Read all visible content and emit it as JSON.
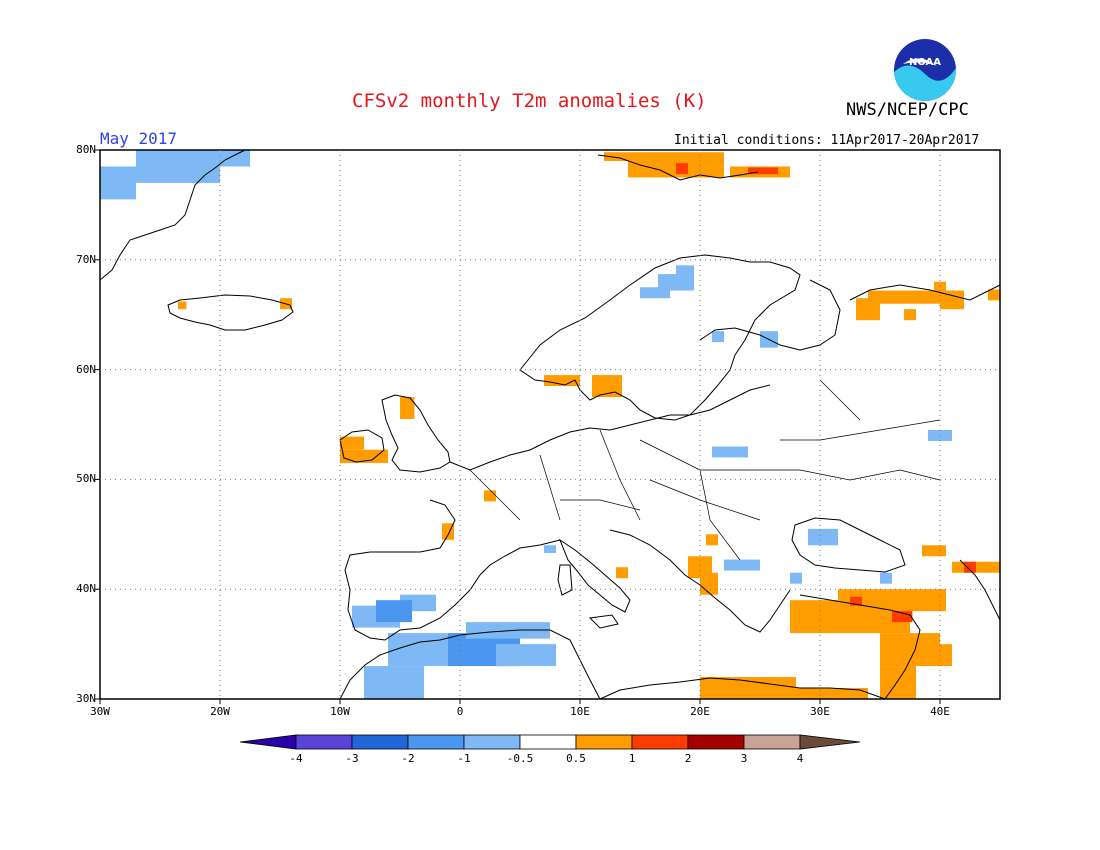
{
  "header": {
    "title": "CFSv2 monthly T2m anomalies (K)",
    "agency": "NWS/NCEP/CPC",
    "logo_text": "NOAA",
    "month": "May 2017",
    "initial_conditions": "Initial conditions: 11Apr2017-20Apr2017"
  },
  "axes": {
    "lat_ticks": [
      {
        "label": "80N",
        "value": 80
      },
      {
        "label": "70N",
        "value": 70
      },
      {
        "label": "60N",
        "value": 60
      },
      {
        "label": "50N",
        "value": 50
      },
      {
        "label": "40N",
        "value": 40
      },
      {
        "label": "30N",
        "value": 30
      }
    ],
    "lon_ticks": [
      {
        "label": "30W",
        "value": -30
      },
      {
        "label": "20W",
        "value": -20
      },
      {
        "label": "10W",
        "value": -10
      },
      {
        "label": "0",
        "value": 0
      },
      {
        "label": "10E",
        "value": 10
      },
      {
        "label": "20E",
        "value": 20
      },
      {
        "label": "30E",
        "value": 30
      },
      {
        "label": "40E",
        "value": 40
      }
    ],
    "lon_range": [
      -30,
      45
    ],
    "lat_range": [
      30,
      80
    ]
  },
  "colorbar": {
    "labels": [
      "-4",
      "-3",
      "-2",
      "-1",
      "-0.5",
      "0.5",
      "1",
      "2",
      "3",
      "4"
    ],
    "colors": [
      "#2a00a8",
      "#5a43d8",
      "#2166d8",
      "#4b96ee",
      "#7fb9f5",
      "#ffffff",
      "#ff9c00",
      "#ff3b00",
      "#a50000",
      "#c9a396",
      "#6b4a3a"
    ]
  },
  "colors": {
    "cold_1": "#4b96ee",
    "cold_05": "#7fb9f5",
    "warm_05": "#ff9c00",
    "warm_1": "#ff3b00"
  },
  "anomalies": [
    {
      "lon": -30,
      "lat": 75.5,
      "w": 3,
      "h": 3,
      "v": -0.7
    },
    {
      "lon": -27,
      "lat": 77,
      "w": 7,
      "h": 3,
      "v": -0.7
    },
    {
      "lon": -22,
      "lat": 78.5,
      "w": 4.5,
      "h": 1.5,
      "v": -0.7
    },
    {
      "lon": 12,
      "lat": 79,
      "w": 10,
      "h": 0.8,
      "v": 0.7
    },
    {
      "lon": 14,
      "lat": 77.5,
      "w": 8,
      "h": 1.5,
      "v": 0.7
    },
    {
      "lon": 22.5,
      "lat": 77.5,
      "w": 5,
      "h": 1,
      "v": 0.7
    },
    {
      "lon": 18,
      "lat": 77.8,
      "w": 1,
      "h": 1,
      "v": 1.2
    },
    {
      "lon": 24,
      "lat": 77.8,
      "w": 2.5,
      "h": 0.6,
      "v": 1.2
    },
    {
      "lon": 15,
      "lat": 66.5,
      "w": 2.5,
      "h": 1,
      "v": -0.7
    },
    {
      "lon": 16.5,
      "lat": 67.2,
      "w": 3,
      "h": 1.5,
      "v": -0.7
    },
    {
      "lon": 18,
      "lat": 68.5,
      "w": 1.5,
      "h": 1,
      "v": -0.7
    },
    {
      "lon": 21,
      "lat": 62.5,
      "w": 1,
      "h": 1,
      "v": -0.7
    },
    {
      "lon": 25,
      "lat": 62,
      "w": 1.5,
      "h": 1.5,
      "v": -0.7
    },
    {
      "lon": 7,
      "lat": 58.5,
      "w": 3,
      "h": 1,
      "v": 0.7
    },
    {
      "lon": 11,
      "lat": 57.5,
      "w": 2.5,
      "h": 2,
      "v": 0.7
    },
    {
      "lon": -5,
      "lat": 55.5,
      "w": 1.2,
      "h": 2,
      "v": 0.7
    },
    {
      "lon": -10,
      "lat": 51.5,
      "w": 4,
      "h": 1.2,
      "v": 0.7
    },
    {
      "lon": -10,
      "lat": 52.7,
      "w": 2,
      "h": 1.2,
      "v": 0.7
    },
    {
      "lon": 2,
      "lat": 48,
      "w": 1,
      "h": 1,
      "v": 0.7
    },
    {
      "lon": -1.5,
      "lat": 44.5,
      "w": 1,
      "h": 1.5,
      "v": 0.7
    },
    {
      "lon": 21,
      "lat": 52,
      "w": 3,
      "h": 1,
      "v": -0.7
    },
    {
      "lon": 39,
      "lat": 53.5,
      "w": 2,
      "h": 1,
      "v": -0.7
    },
    {
      "lon": 29,
      "lat": 44,
      "w": 2.5,
      "h": 1.5,
      "v": -0.7
    },
    {
      "lon": 7,
      "lat": 43.3,
      "w": 1,
      "h": 0.7,
      "v": -0.7
    },
    {
      "lon": 22,
      "lat": 41.7,
      "w": 3,
      "h": 1,
      "v": -0.7
    },
    {
      "lon": 19,
      "lat": 41,
      "w": 2,
      "h": 2,
      "v": 0.7
    },
    {
      "lon": 20,
      "lat": 39.5,
      "w": 1.5,
      "h": 2,
      "v": 0.7
    },
    {
      "lon": 13,
      "lat": 41,
      "w": 1,
      "h": 1,
      "v": 0.7
    },
    {
      "lon": 20.5,
      "lat": 44,
      "w": 1,
      "h": 1,
      "v": 0.7
    },
    {
      "lon": -9,
      "lat": 36.5,
      "w": 4,
      "h": 2,
      "v": -0.7
    },
    {
      "lon": -5,
      "lat": 38,
      "w": 3,
      "h": 1.5,
      "v": -0.7
    },
    {
      "lon": -7,
      "lat": 37,
      "w": 3,
      "h": 2,
      "v": -1.2
    },
    {
      "lon": -6,
      "lat": 33,
      "w": 6,
      "h": 3,
      "v": -0.7
    },
    {
      "lon": -8,
      "lat": 30,
      "w": 5,
      "h": 3,
      "v": -0.7
    },
    {
      "lon": -1,
      "lat": 33,
      "w": 6,
      "h": 3,
      "v": -1.2
    },
    {
      "lon": 0.5,
      "lat": 35.5,
      "w": 7,
      "h": 1.5,
      "v": -0.7
    },
    {
      "lon": 3,
      "lat": 33,
      "w": 5,
      "h": 2,
      "v": -0.7
    },
    {
      "lon": 20,
      "lat": 30,
      "w": 8,
      "h": 2,
      "v": 0.7
    },
    {
      "lon": 28,
      "lat": 30,
      "w": 6,
      "h": 1,
      "v": 0.7
    },
    {
      "lon": 27.5,
      "lat": 36,
      "w": 10,
      "h": 3,
      "v": 0.7
    },
    {
      "lon": 31.5,
      "lat": 38.5,
      "w": 9,
      "h": 1.5,
      "v": 0.7
    },
    {
      "lon": 37.5,
      "lat": 38,
      "w": 3,
      "h": 1.5,
      "v": 0.7
    },
    {
      "lon": 35,
      "lat": 33,
      "w": 5,
      "h": 3,
      "v": 0.7
    },
    {
      "lon": 35,
      "lat": 30,
      "w": 3,
      "h": 3,
      "v": 0.7
    },
    {
      "lon": 39,
      "lat": 33,
      "w": 2,
      "h": 2,
      "v": 0.7
    },
    {
      "lon": 32.5,
      "lat": 38.5,
      "w": 1,
      "h": 0.8,
      "v": 1.2
    },
    {
      "lon": 36,
      "lat": 37,
      "w": 1.7,
      "h": 1,
      "v": 1.2
    },
    {
      "lon": 38.5,
      "lat": 43,
      "w": 2,
      "h": 1,
      "v": 0.7
    },
    {
      "lon": 41,
      "lat": 41.5,
      "w": 4,
      "h": 1,
      "v": 0.7
    },
    {
      "lon": 42,
      "lat": 41.5,
      "w": 1,
      "h": 1,
      "v": 1.2
    },
    {
      "lon": 33,
      "lat": 64.5,
      "w": 2,
      "h": 2,
      "v": 0.7
    },
    {
      "lon": 34,
      "lat": 66,
      "w": 8,
      "h": 1.2,
      "v": 0.7
    },
    {
      "lon": 37,
      "lat": 64.5,
      "w": 1,
      "h": 1,
      "v": 0.7
    },
    {
      "lon": 40,
      "lat": 65.5,
      "w": 2,
      "h": 1,
      "v": 0.7
    },
    {
      "lon": 44,
      "lat": 66.3,
      "w": 1,
      "h": 1,
      "v": 0.7
    },
    {
      "lon": 39.5,
      "lat": 67,
      "w": 1,
      "h": 1,
      "v": 0.7
    },
    {
      "lon": 35,
      "lat": 40.5,
      "w": 1,
      "h": 1,
      "v": -0.7
    },
    {
      "lon": 27.5,
      "lat": 40.5,
      "w": 1,
      "h": 1,
      "v": -0.7
    },
    {
      "lon": -23.5,
      "lat": 65.5,
      "w": 0.7,
      "h": 0.7,
      "v": 0.7
    },
    {
      "lon": -15,
      "lat": 65.5,
      "w": 1,
      "h": 1,
      "v": 0.7
    }
  ]
}
